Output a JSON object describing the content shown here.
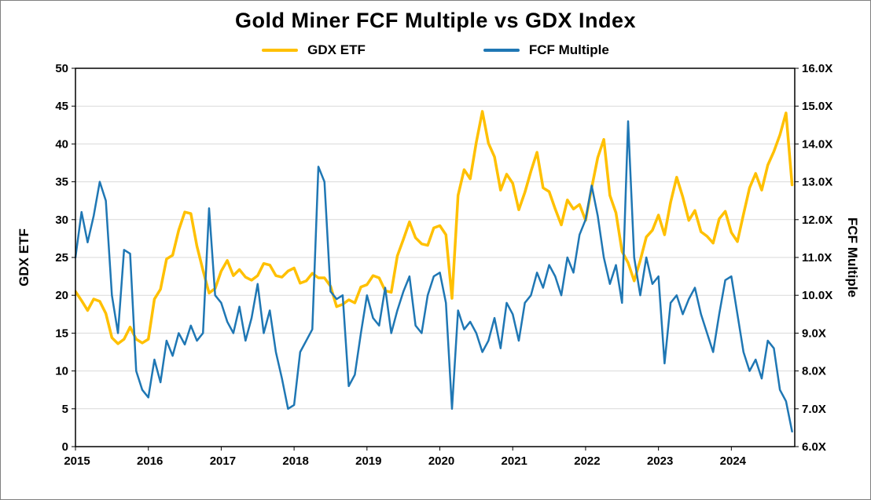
{
  "chart_data": {
    "type": "line",
    "title": "Gold Miner FCF Multiple vs GDX Index",
    "legend": [
      {
        "name": "GDX ETF",
        "color": "#FFC000"
      },
      {
        "name": "FCF Multiple",
        "color": "#1F77B4"
      }
    ],
    "legend_position": "top",
    "grid": true,
    "colors": {
      "grid": "#D9D9D9",
      "axis": "#000000",
      "background": "#FFFFFF"
    },
    "left_axis": {
      "label": "GDX ETF",
      "min": 0,
      "max": 50,
      "ticks": [
        0,
        5,
        10,
        15,
        20,
        25,
        30,
        35,
        40,
        45,
        50
      ]
    },
    "right_axis": {
      "label": "FCF Multiple",
      "min": 6,
      "max": 16,
      "tick_step": 1,
      "tick_labels": [
        "6.0X",
        "7.0X",
        "8.0X",
        "9.0X",
        "10.0X",
        "11.0X",
        "12.0X",
        "13.0X",
        "14.0X",
        "15.0X",
        "16.0X"
      ]
    },
    "x_axis": {
      "min": 2015,
      "max": 2024.87,
      "ticks": [
        2015,
        2016,
        2017,
        2018,
        2019,
        2020,
        2021,
        2022,
        2023,
        2024
      ]
    },
    "sampling": {
      "x_start": 2015.0,
      "x_step": 0.0833333
    },
    "series": [
      {
        "name": "GDX ETF",
        "axis": "left",
        "color": "#FFC000",
        "width": 3.5,
        "y": [
          20.5,
          19.3,
          18.0,
          19.5,
          19.2,
          17.6,
          14.4,
          13.6,
          14.2,
          15.8,
          14.2,
          13.7,
          14.2,
          19.5,
          20.8,
          24.8,
          25.3,
          28.6,
          31.0,
          30.8,
          26.5,
          23.3,
          20.3,
          20.9,
          23.2,
          24.6,
          22.6,
          23.4,
          22.4,
          22.0,
          22.6,
          24.2,
          24.0,
          22.6,
          22.4,
          23.2,
          23.6,
          21.6,
          21.9,
          22.9,
          22.3,
          22.3,
          21.2,
          18.5,
          18.8,
          19.4,
          19.0,
          21.1,
          21.4,
          22.6,
          22.3,
          20.6,
          20.4,
          25.2,
          27.4,
          29.7,
          27.6,
          26.8,
          26.6,
          28.9,
          29.2,
          28.0,
          19.6,
          33.2,
          36.6,
          35.4,
          40.2,
          44.3,
          40.1,
          38.3,
          33.9,
          36.0,
          34.8,
          31.3,
          33.6,
          36.4,
          38.9,
          34.2,
          33.7,
          31.4,
          29.3,
          32.6,
          31.4,
          32.0,
          29.9,
          34.2,
          38.2,
          40.6,
          33.2,
          30.9,
          25.8,
          24.3,
          21.9,
          24.6,
          27.7,
          28.6,
          30.6,
          28.0,
          32.3,
          35.6,
          33.0,
          29.9,
          31.2,
          28.4,
          27.8,
          26.9,
          30.1,
          31.1,
          28.3,
          27.1,
          30.7,
          34.2,
          36.1,
          33.9,
          37.2,
          39.0,
          41.2,
          44.1,
          34.6
        ]
      },
      {
        "name": "FCF Multiple",
        "axis": "right",
        "color": "#1F77B4",
        "width": 2.5,
        "y": [
          11.0,
          12.2,
          11.4,
          12.1,
          13.0,
          12.5,
          10.0,
          9.0,
          11.2,
          11.1,
          8.0,
          7.5,
          7.3,
          8.3,
          7.7,
          8.8,
          8.4,
          9.0,
          8.7,
          9.2,
          8.8,
          9.0,
          12.3,
          10.0,
          9.8,
          9.3,
          9.0,
          9.7,
          8.8,
          9.4,
          10.3,
          9.0,
          9.6,
          8.5,
          7.8,
          7.0,
          7.1,
          8.5,
          8.8,
          9.1,
          13.4,
          13.0,
          10.1,
          9.9,
          10.0,
          7.6,
          7.9,
          9.0,
          10.0,
          9.4,
          9.2,
          10.2,
          9.0,
          9.6,
          10.1,
          10.5,
          9.2,
          9.0,
          10.0,
          10.5,
          10.6,
          9.8,
          7.0,
          9.6,
          9.1,
          9.3,
          9.0,
          8.5,
          8.8,
          9.4,
          8.6,
          9.8,
          9.5,
          8.8,
          9.8,
          10.0,
          10.6,
          10.2,
          10.8,
          10.5,
          10.0,
          11.0,
          10.6,
          11.6,
          12.0,
          12.9,
          12.1,
          11.0,
          10.3,
          10.8,
          9.8,
          14.6,
          11.0,
          10.0,
          11.0,
          10.3,
          10.5,
          8.2,
          9.8,
          10.0,
          9.5,
          9.9,
          10.2,
          9.5,
          9.0,
          8.5,
          9.5,
          10.4,
          10.5,
          9.5,
          8.5,
          8.0,
          8.3,
          7.8,
          8.8,
          8.6,
          7.5,
          7.2,
          6.4
        ]
      }
    ]
  }
}
